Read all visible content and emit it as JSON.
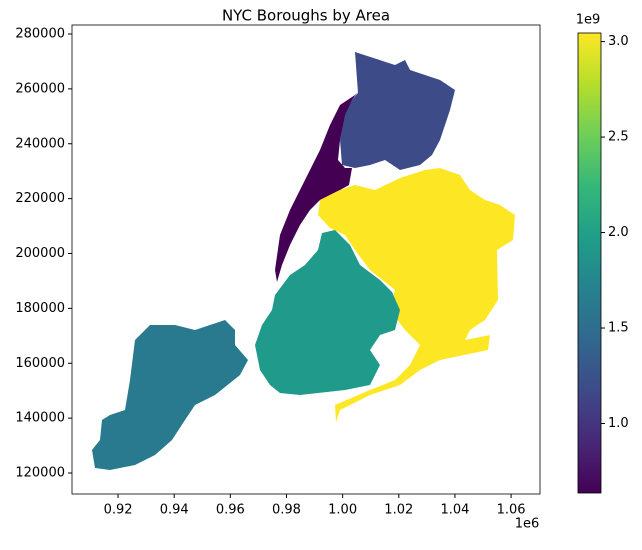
{
  "chart_data": {
    "type": "choropleth",
    "title": "NYC Boroughs by Area",
    "values": [
      0.636,
      1.187,
      3.045,
      1.937,
      1.623
    ],
    "colormap": "viridis",
    "xlim": [
      0.9036,
      1.0703
    ],
    "xticks": [
      0.92,
      0.94,
      0.96,
      0.98,
      1.0,
      1.02,
      1.04,
      1.06
    ],
    "xticks_labels_fixed": null,
    "x_offset_label": "1e6",
    "ylim": [
      112350,
      283280
    ],
    "yticks": [
      120000,
      140000,
      160000,
      180000,
      200000,
      220000,
      240000,
      260000,
      280000
    ],
    "clim": [
      0.636,
      3.045
    ],
    "cticks": [
      {
        "value": 1,
        "label": "1.0"
      },
      {
        "value": 1.5,
        "label": "1.5"
      },
      {
        "value": 2,
        "label": "2.0"
      },
      {
        "value": 2.5,
        "label": "2.5"
      },
      {
        "value": 3,
        "label": "3.0"
      }
    ],
    "c_offset_label": "1e9"
  }
}
